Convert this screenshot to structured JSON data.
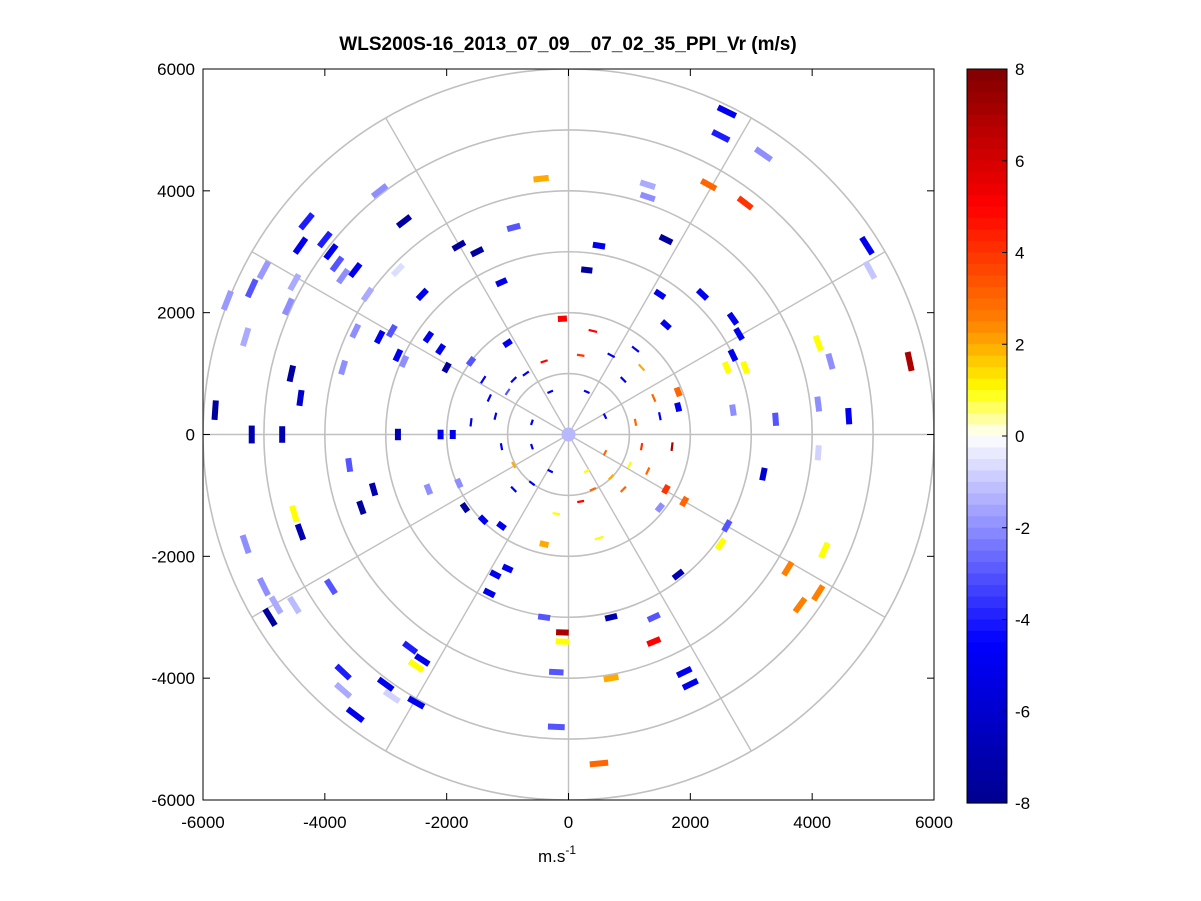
{
  "chart_data": {
    "type": "scatter",
    "subtype": "polar-ppi",
    "title": "WLS200S-16_2013_07_09__07_02_35_PPI_Vr (m/s)",
    "xlabel_base": "m.s",
    "xlabel_exp": "-1",
    "xlim": [
      -6000,
      6000
    ],
    "ylim": [
      -6000,
      6000
    ],
    "x_ticks": [
      "-6000",
      "-4000",
      "-2000",
      "0",
      "2000",
      "4000",
      "6000"
    ],
    "y_ticks": [
      "6000",
      "4000",
      "2000",
      "0",
      "-2000",
      "-4000",
      "-6000"
    ],
    "grid": true,
    "range_rings": [
      1000,
      2000,
      3000,
      4000,
      5000,
      6000
    ],
    "spokes_deg": [
      0,
      30,
      60,
      90,
      120,
      150,
      180,
      210,
      240,
      270,
      300,
      330
    ],
    "colorbar": {
      "min": -8,
      "max": 8,
      "ticks": [
        "8",
        "6",
        "4",
        "2",
        "0",
        "-2",
        "-4",
        "-6",
        "-8"
      ]
    },
    "colors": {
      "grid": "#c0c0c0",
      "neg_low": "#00008f",
      "neg_mid": "#0000ff",
      "neg_zero": "#ffffff",
      "pos_zero": "#ffffff",
      "pos_a": "#ffff00",
      "pos_b": "#ff8000",
      "pos_c": "#ff0000",
      "pos_high": "#800000"
    },
    "points": [
      {
        "x": -5800,
        "y": 400,
        "v": -7.5
      },
      {
        "x": -5200,
        "y": 0,
        "v": -7
      },
      {
        "x": -4700,
        "y": 0,
        "v": -7
      },
      {
        "x": -4550,
        "y": 1000,
        "v": -7.5
      },
      {
        "x": -4400,
        "y": 600,
        "v": -6
      },
      {
        "x": -5600,
        "y": 2200,
        "v": -1.8
      },
      {
        "x": -5300,
        "y": 1600,
        "v": -1.5
      },
      {
        "x": -5200,
        "y": 2400,
        "v": -3
      },
      {
        "x": -5000,
        "y": 2700,
        "v": -1.8
      },
      {
        "x": -4500,
        "y": 2500,
        "v": -1.5
      },
      {
        "x": -4600,
        "y": 2100,
        "v": -2
      },
      {
        "x": -4300,
        "y": 3500,
        "v": -4
      },
      {
        "x": -4400,
        "y": 3100,
        "v": -5
      },
      {
        "x": -4000,
        "y": 3200,
        "v": -4
      },
      {
        "x": -3900,
        "y": 3000,
        "v": -5
      },
      {
        "x": -3800,
        "y": 2800,
        "v": -3
      },
      {
        "x": -3700,
        "y": 2600,
        "v": -2
      },
      {
        "x": -3500,
        "y": 2700,
        "v": -5
      },
      {
        "x": -3100,
        "y": 4000,
        "v": -2
      },
      {
        "x": -2700,
        "y": 3500,
        "v": -7.5
      },
      {
        "x": -2800,
        "y": 2700,
        "v": -0.6
      },
      {
        "x": -3300,
        "y": 2300,
        "v": -1.5
      },
      {
        "x": -2400,
        "y": 2300,
        "v": -5
      },
      {
        "x": -3500,
        "y": 1700,
        "v": -2
      },
      {
        "x": -3100,
        "y": 1600,
        "v": -5
      },
      {
        "x": -2900,
        "y": 1700,
        "v": -3
      },
      {
        "x": -2300,
        "y": 1600,
        "v": -5
      },
      {
        "x": -3700,
        "y": 1100,
        "v": -2
      },
      {
        "x": -2800,
        "y": 1300,
        "v": -5
      },
      {
        "x": -2700,
        "y": 1200,
        "v": -2
      },
      {
        "x": -2100,
        "y": 1400,
        "v": -5
      },
      {
        "x": -2000,
        "y": 1100,
        "v": -7.5
      },
      {
        "x": -1600,
        "y": 1200,
        "v": -3
      },
      {
        "x": -1400,
        "y": 900,
        "v": -5
      },
      {
        "x": -1000,
        "y": 1500,
        "v": -5
      },
      {
        "x": -1800,
        "y": 3100,
        "v": -7.5
      },
      {
        "x": -1500,
        "y": 3000,
        "v": -7.5
      },
      {
        "x": -900,
        "y": 3400,
        "v": -3
      },
      {
        "x": -1100,
        "y": 2500,
        "v": -5
      },
      {
        "x": -2800,
        "y": 0,
        "v": -7
      },
      {
        "x": -2100,
        "y": 0,
        "v": -5
      },
      {
        "x": -1900,
        "y": 0,
        "v": -5
      },
      {
        "x": -3600,
        "y": -500,
        "v": -3
      },
      {
        "x": -3200,
        "y": -900,
        "v": -7
      },
      {
        "x": -3400,
        "y": -1200,
        "v": -7.5
      },
      {
        "x": -2300,
        "y": -900,
        "v": -2
      },
      {
        "x": -1800,
        "y": -800,
        "v": -2
      },
      {
        "x": -1700,
        "y": -1200,
        "v": -7.5
      },
      {
        "x": -1400,
        "y": -1400,
        "v": -5
      },
      {
        "x": -4500,
        "y": -1300,
        "v": 1
      },
      {
        "x": -4400,
        "y": -1600,
        "v": -7
      },
      {
        "x": -5300,
        "y": -1800,
        "v": -2
      },
      {
        "x": -5000,
        "y": -2500,
        "v": -2
      },
      {
        "x": -4800,
        "y": -2800,
        "v": -1.5
      },
      {
        "x": -4500,
        "y": -2800,
        "v": -1.2
      },
      {
        "x": -4900,
        "y": -3000,
        "v": -7.5
      },
      {
        "x": -3900,
        "y": -2500,
        "v": -3
      },
      {
        "x": -3700,
        "y": -3900,
        "v": -4
      },
      {
        "x": -3700,
        "y": -4200,
        "v": -1.5
      },
      {
        "x": -3500,
        "y": -4600,
        "v": -5
      },
      {
        "x": -3000,
        "y": -4100,
        "v": -5
      },
      {
        "x": -2900,
        "y": -4300,
        "v": -0.8
      },
      {
        "x": -2500,
        "y": -4400,
        "v": -5
      },
      {
        "x": -2600,
        "y": -3500,
        "v": -4
      },
      {
        "x": -2500,
        "y": -3800,
        "v": 1
      },
      {
        "x": -2400,
        "y": -3700,
        "v": -5
      },
      {
        "x": -1200,
        "y": -2300,
        "v": -5
      },
      {
        "x": -1300,
        "y": -2600,
        "v": -5
      },
      {
        "x": -1000,
        "y": -2200,
        "v": -5
      },
      {
        "x": -400,
        "y": -3000,
        "v": -3
      },
      {
        "x": -100,
        "y": -3250,
        "v": 7
      },
      {
        "x": -100,
        "y": -3400,
        "v": 1
      },
      {
        "x": -200,
        "y": -3900,
        "v": -3
      },
      {
        "x": -200,
        "y": -4800,
        "v": -3
      },
      {
        "x": 500,
        "y": -5400,
        "v": 3
      },
      {
        "x": 700,
        "y": -3000,
        "v": -7
      },
      {
        "x": 700,
        "y": -4000,
        "v": 2
      },
      {
        "x": 1400,
        "y": -3400,
        "v": 5
      },
      {
        "x": 1400,
        "y": -3000,
        "v": -3
      },
      {
        "x": 1900,
        "y": -3900,
        "v": -5
      },
      {
        "x": 2000,
        "y": -4100,
        "v": -5
      },
      {
        "x": 1800,
        "y": -2300,
        "v": -7
      },
      {
        "x": 2500,
        "y": -1800,
        "v": 1
      },
      {
        "x": 2600,
        "y": -1500,
        "v": -3
      },
      {
        "x": 1900,
        "y": -1100,
        "v": 3
      },
      {
        "x": 1600,
        "y": -900,
        "v": 4
      },
      {
        "x": 1500,
        "y": -1200,
        "v": -2
      },
      {
        "x": 3600,
        "y": -2200,
        "v": 2.5
      },
      {
        "x": 3800,
        "y": -2800,
        "v": 2.5
      },
      {
        "x": 4100,
        "y": -2600,
        "v": 2.5
      },
      {
        "x": 4200,
        "y": -1900,
        "v": 1
      },
      {
        "x": 3200,
        "y": -650,
        "v": -6
      },
      {
        "x": 4100,
        "y": -300,
        "v": -0.8
      },
      {
        "x": 4100,
        "y": 500,
        "v": -2
      },
      {
        "x": 4600,
        "y": 300,
        "v": -5
      },
      {
        "x": 3400,
        "y": 250,
        "v": -3
      },
      {
        "x": 2700,
        "y": 400,
        "v": -2
      },
      {
        "x": 2900,
        "y": 1100,
        "v": 1
      },
      {
        "x": 2600,
        "y": 1100,
        "v": 1
      },
      {
        "x": 2700,
        "y": 1300,
        "v": -5
      },
      {
        "x": 4100,
        "y": 1500,
        "v": 1
      },
      {
        "x": 4300,
        "y": 1200,
        "v": -2
      },
      {
        "x": 5600,
        "y": 1200,
        "v": 7
      },
      {
        "x": 4950,
        "y": 2700,
        "v": -1
      },
      {
        "x": 4900,
        "y": 3100,
        "v": -5
      },
      {
        "x": 2700,
        "y": 1900,
        "v": -5
      },
      {
        "x": 2800,
        "y": 1650,
        "v": -5
      },
      {
        "x": 2200,
        "y": 2300,
        "v": -5
      },
      {
        "x": 1500,
        "y": 2300,
        "v": -5
      },
      {
        "x": 1600,
        "y": 1800,
        "v": -5
      },
      {
        "x": 1600,
        "y": 3200,
        "v": -7.5
      },
      {
        "x": 1300,
        "y": 3900,
        "v": -2
      },
      {
        "x": 1300,
        "y": 4100,
        "v": -1.5
      },
      {
        "x": 2300,
        "y": 4100,
        "v": 3
      },
      {
        "x": 2900,
        "y": 3800,
        "v": 4
      },
      {
        "x": 2500,
        "y": 4900,
        "v": -4
      },
      {
        "x": 2600,
        "y": 5300,
        "v": -5
      },
      {
        "x": 3200,
        "y": 4600,
        "v": -2
      },
      {
        "x": 500,
        "y": 3100,
        "v": -5
      },
      {
        "x": 300,
        "y": 2700,
        "v": -7.5
      },
      {
        "x": -450,
        "y": 4200,
        "v": 2
      },
      {
        "x": -100,
        "y": 1900,
        "v": 5
      },
      {
        "x": 700,
        "y": 1300,
        "v": -5
      },
      {
        "x": 1200,
        "y": 1100,
        "v": 2
      },
      {
        "x": 1400,
        "y": 600,
        "v": 3
      },
      {
        "x": 1800,
        "y": 700,
        "v": 3
      },
      {
        "x": 1800,
        "y": 450,
        "v": -5
      },
      {
        "x": 1500,
        "y": 300,
        "v": -5
      },
      {
        "x": 1100,
        "y": 200,
        "v": 3
      },
      {
        "x": 1200,
        "y": -200,
        "v": 4
      },
      {
        "x": 1000,
        "y": -500,
        "v": 1
      },
      {
        "x": 700,
        "y": -700,
        "v": 2
      },
      {
        "x": 400,
        "y": -900,
        "v": 3
      },
      {
        "x": 200,
        "y": -1100,
        "v": 5
      },
      {
        "x": -200,
        "y": -1300,
        "v": 1
      },
      {
        "x": -600,
        "y": -800,
        "v": -5
      },
      {
        "x": -900,
        "y": -500,
        "v": 2
      },
      {
        "x": -1100,
        "y": -200,
        "v": -5
      },
      {
        "x": -1200,
        "y": 300,
        "v": -5
      },
      {
        "x": -1000,
        "y": 700,
        "v": -3
      },
      {
        "x": -700,
        "y": 1000,
        "v": -5
      },
      {
        "x": -400,
        "y": 1200,
        "v": 5
      },
      {
        "x": 200,
        "y": 1300,
        "v": 4
      },
      {
        "x": -300,
        "y": 700,
        "v": -5
      },
      {
        "x": 300,
        "y": 700,
        "v": -5
      },
      {
        "x": 600,
        "y": 300,
        "v": -5
      },
      {
        "x": 600,
        "y": -300,
        "v": 3
      },
      {
        "x": 300,
        "y": -600,
        "v": 1
      },
      {
        "x": -300,
        "y": -600,
        "v": -5
      },
      {
        "x": -600,
        "y": -200,
        "v": -5
      },
      {
        "x": -600,
        "y": 200,
        "v": -5
      },
      {
        "x": 900,
        "y": 900,
        "v": -5
      },
      {
        "x": -900,
        "y": 900,
        "v": -5
      },
      {
        "x": 900,
        "y": -900,
        "v": 3
      },
      {
        "x": -900,
        "y": -900,
        "v": -5
      },
      {
        "x": 1300,
        "y": -600,
        "v": 3
      },
      {
        "x": -1300,
        "y": 600,
        "v": -5
      },
      {
        "x": 1700,
        "y": -200,
        "v": 7
      },
      {
        "x": -1600,
        "y": 200,
        "v": -5
      },
      {
        "x": 1100,
        "y": 1400,
        "v": -5
      },
      {
        "x": -1100,
        "y": -1500,
        "v": -5
      },
      {
        "x": 400,
        "y": 1700,
        "v": 5
      },
      {
        "x": 500,
        "y": -1700,
        "v": 1
      },
      {
        "x": -400,
        "y": -1800,
        "v": 2
      }
    ]
  }
}
